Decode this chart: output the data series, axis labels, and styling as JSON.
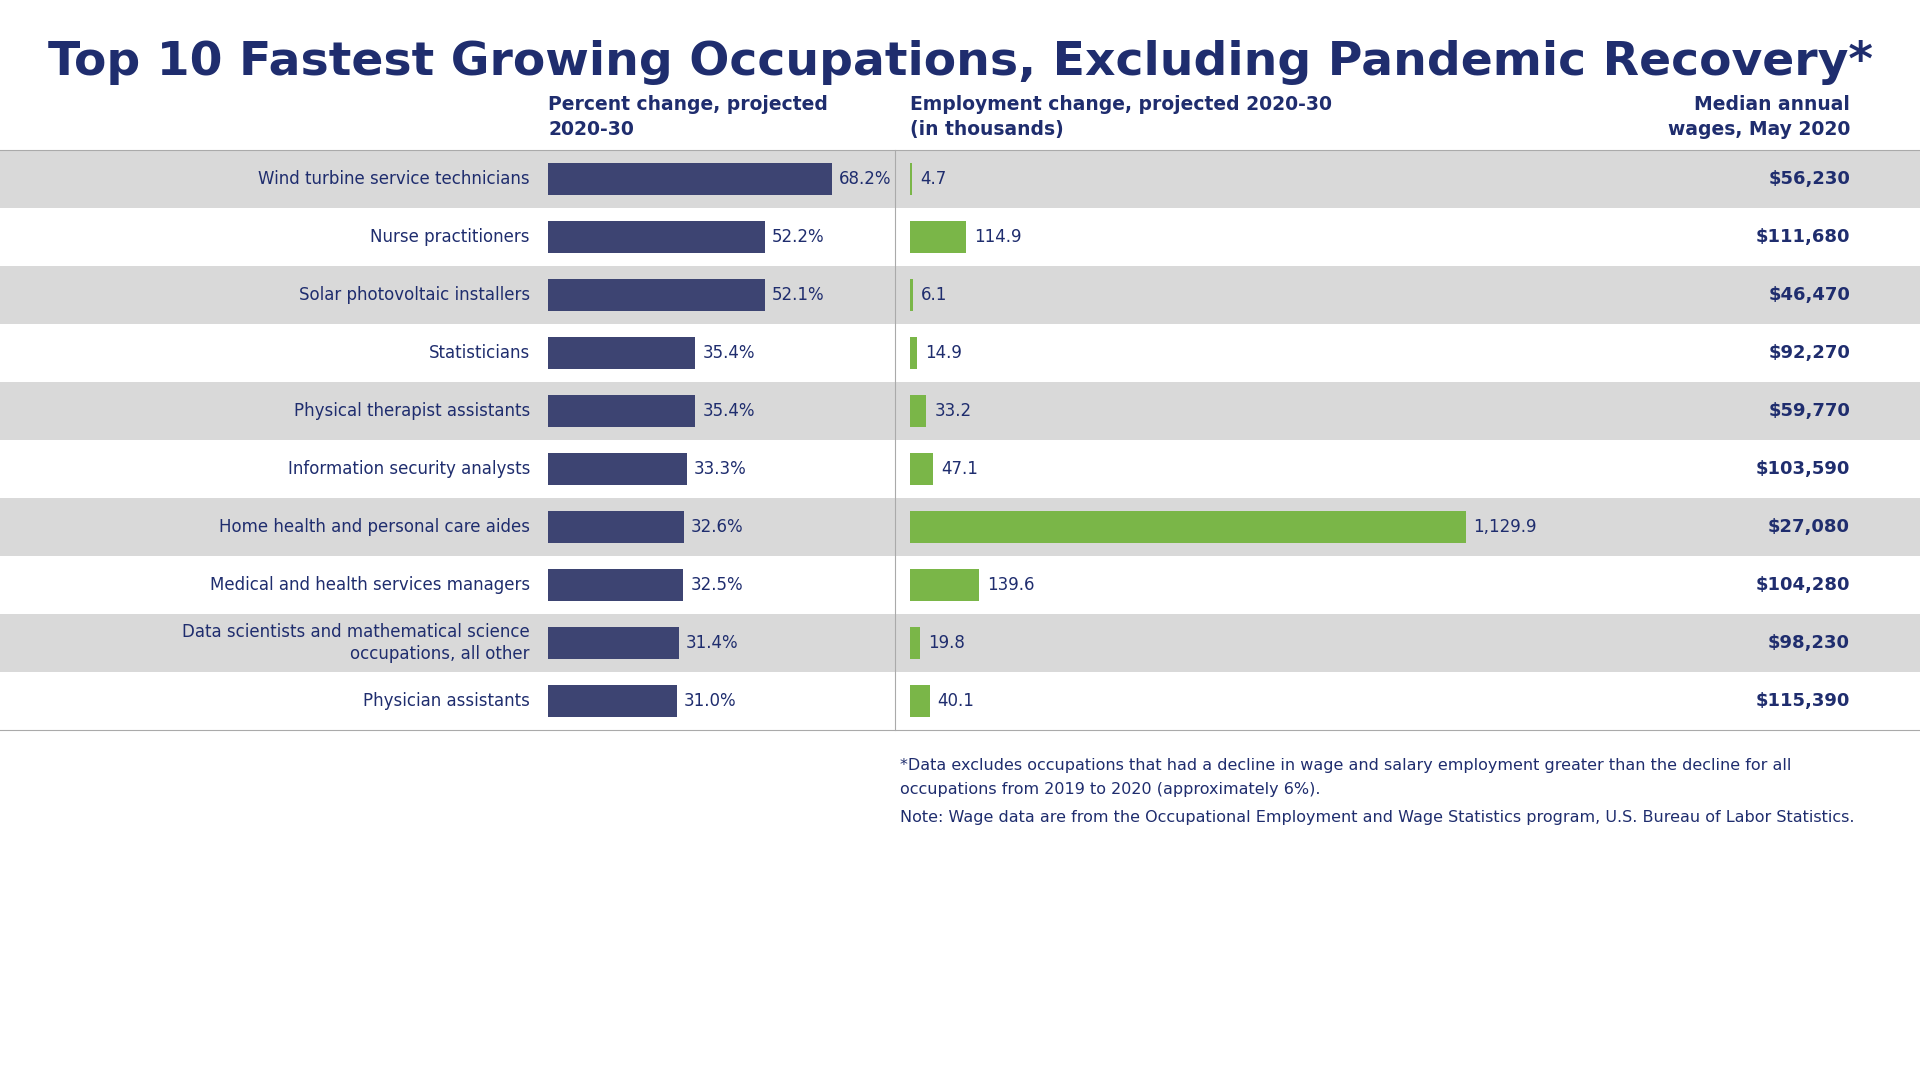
{
  "title": "Top 10 Fastest Growing Occupations, Excluding Pandemic Recovery*",
  "title_color": "#1f2d6e",
  "background_color": "#ffffff",
  "occupations": [
    "Wind turbine service technicians",
    "Nurse practitioners",
    "Solar photovoltaic installers",
    "Statisticians",
    "Physical therapist assistants",
    "Information security analysts",
    "Home health and personal care aides",
    "Medical and health services managers",
    "Data scientists and mathematical science\noccupations, all other",
    "Physician assistants"
  ],
  "pct_change": [
    68.2,
    52.2,
    52.1,
    35.4,
    35.4,
    33.3,
    32.6,
    32.5,
    31.4,
    31.0
  ],
  "emp_change": [
    4.7,
    114.9,
    6.1,
    14.9,
    33.2,
    47.1,
    1129.9,
    139.6,
    19.8,
    40.1
  ],
  "emp_change_labels": [
    "4.7",
    "114.9",
    "6.1",
    "14.9",
    "33.2",
    "47.1",
    "1,129.9",
    "139.6",
    "19.8",
    "40.1"
  ],
  "wages": [
    "$56,230",
    "$111,680",
    "$46,470",
    "$92,270",
    "$59,770",
    "$103,590",
    "$27,080",
    "$104,280",
    "$98,230",
    "$115,390"
  ],
  "row_bg_colors": [
    "#d9d9d9",
    "#ffffff",
    "#d9d9d9",
    "#ffffff",
    "#d9d9d9",
    "#ffffff",
    "#d9d9d9",
    "#ffffff",
    "#d9d9d9",
    "#ffffff"
  ],
  "bar_color_pct": "#3d4472",
  "bar_color_emp": "#7ab648",
  "col_header_color": "#1f2d6e",
  "text_color": "#1f2d6e",
  "footnote_color": "#1f2d6e",
  "footnote_line1": "*Data excludes occupations that had a decline in wage and salary employment greater than the decline for all",
  "footnote_line2": "occupations from 2019 to 2020 (approximately 6%).",
  "footnote_line3": "Note: Wage data are from the Occupational Employment and Wage Statistics program, U.S. Bureau of Labor Statistics.",
  "col1_header": "Percent change, projected\n2020-30",
  "col2_header": "Employment change, projected 2020-30\n(in thousands)",
  "col3_header": "Median annual\nwages, May 2020"
}
